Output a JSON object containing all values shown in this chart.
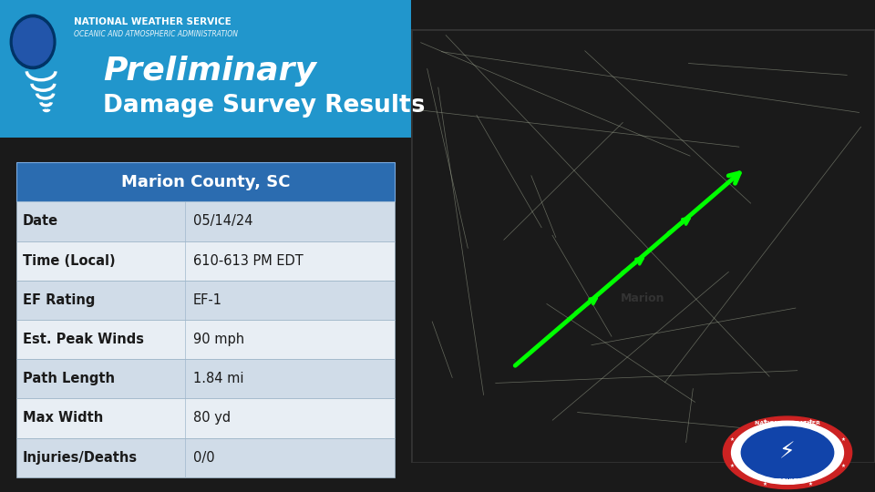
{
  "bg_color": "#1a1a1a",
  "left_panel_bg": "#e8e8e8",
  "header_bg": "#2196cc",
  "header_text": "National Weather Service",
  "title_line1": "Preliminary",
  "title_line2": "Damage Survey Results",
  "title_color": "#ffffff",
  "table_header": "Marion County, SC",
  "table_header_bg": "#2b6cb0",
  "table_header_text_color": "#ffffff",
  "rows": [
    [
      "Date",
      "05/14/24"
    ],
    [
      "Time (Local)",
      "610-613 PM EDT"
    ],
    [
      "EF Rating",
      "EF-1"
    ],
    [
      "Est. Peak Winds",
      "90 mph"
    ],
    [
      "Path Length",
      "1.84 mi"
    ],
    [
      "Max Width",
      "80 yd"
    ],
    [
      "Injuries/Deaths",
      "0/0"
    ]
  ],
  "row_bg_odd": "#d0dce8",
  "row_bg_even": "#e8eef4",
  "row_text_color": "#1a1a1a",
  "map_placeholder_color": "#c8d8b0",
  "map_border_color": "#555555"
}
